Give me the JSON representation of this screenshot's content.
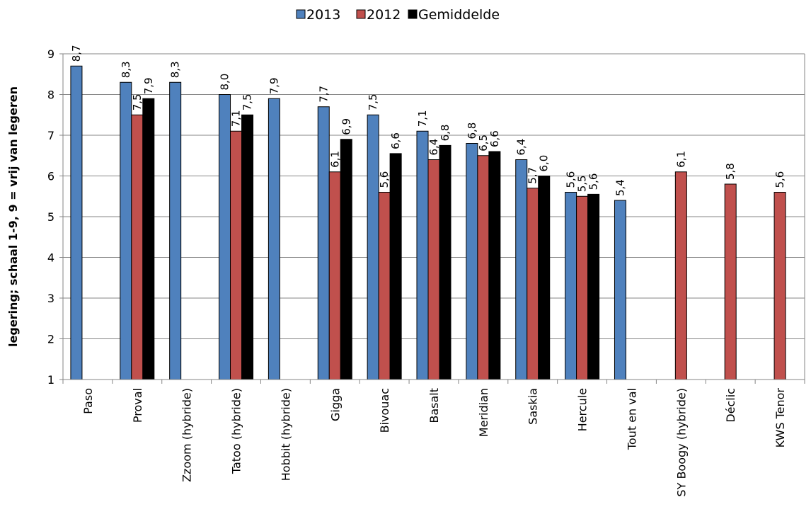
{
  "chart_data": {
    "type": "bar",
    "ylabel": "legering; schaal 1-9, 9 = vrij van legeren",
    "xlabel": "",
    "ylim": [
      1,
      9
    ],
    "yticks": [
      "1",
      "2",
      "3",
      "4",
      "5",
      "6",
      "7",
      "8",
      "9"
    ],
    "grid": "horizontal",
    "legend_position": "top-center",
    "categories": [
      "Paso",
      "Proval",
      "Zzoom (hybride)",
      "Tatoo (hybride)",
      "Hobbit (hybride)",
      "Gigga",
      "Bivouac",
      "Basalt",
      "Meridian",
      "Saskia",
      "Hercule",
      "Tout en val",
      "SY Boogy (hybride)",
      "Déclic",
      "KWS Tenor"
    ],
    "series": [
      {
        "name": "2013",
        "color": "#4f81bd",
        "values": [
          8.7,
          8.3,
          8.3,
          8.0,
          7.9,
          7.7,
          7.5,
          7.1,
          6.8,
          6.4,
          5.6,
          5.4,
          null,
          null,
          null
        ],
        "labels": [
          "8,7",
          "8,3",
          "8,3",
          "8,0",
          "7,9",
          "7,7",
          "7,5",
          "7,1",
          "6,8",
          "6,4",
          "5,6",
          "5,4",
          null,
          null,
          null
        ]
      },
      {
        "name": "2012",
        "color": "#c0504d",
        "values": [
          null,
          7.5,
          null,
          7.1,
          null,
          6.1,
          5.6,
          6.4,
          6.5,
          5.7,
          5.5,
          null,
          6.1,
          5.8,
          5.6
        ],
        "labels": [
          null,
          "7,5",
          null,
          "7,1",
          null,
          "6,1",
          "5,6",
          "6,4",
          "6,5",
          "5,7",
          "5,5",
          null,
          "6,1",
          "5,8",
          "5,6"
        ]
      },
      {
        "name": "Gemiddelde",
        "color": "#000000",
        "values": [
          null,
          7.9,
          null,
          7.5,
          null,
          6.9,
          6.55,
          6.75,
          6.6,
          6.0,
          5.55,
          null,
          null,
          null,
          null
        ],
        "labels": [
          null,
          "7,9",
          null,
          "7,5",
          null,
          "6,9",
          "6,6",
          "6,8",
          "6,6",
          "6,0",
          "5,6",
          null,
          null,
          null,
          null
        ]
      }
    ]
  }
}
